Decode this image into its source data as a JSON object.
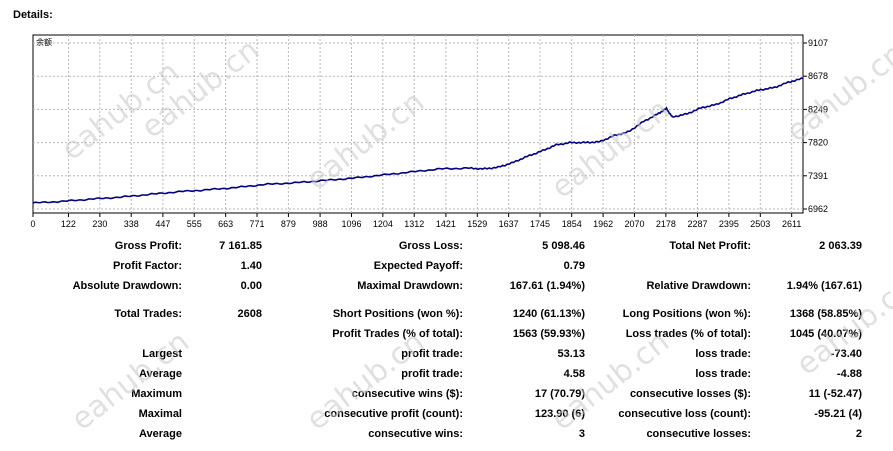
{
  "title": "Details:",
  "chart_data": {
    "type": "line",
    "legend_label": "余额",
    "x_ticks": [
      0,
      122,
      230,
      338,
      447,
      555,
      663,
      771,
      879,
      988,
      1096,
      1204,
      1312,
      1421,
      1529,
      1637,
      1745,
      1854,
      1962,
      2070,
      2178,
      2287,
      2395,
      2503,
      2611
    ],
    "y_ticks": [
      9107,
      8678,
      8249,
      7820,
      7391,
      6962
    ],
    "xlim": [
      0,
      2650
    ],
    "ylim": [
      6962,
      9107
    ],
    "series": [
      {
        "color": "#000080",
        "x": [
          0,
          100,
          200,
          300,
          400,
          500,
          600,
          700,
          800,
          900,
          1000,
          1100,
          1200,
          1300,
          1400,
          1500,
          1550,
          1600,
          1650,
          1700,
          1750,
          1800,
          1850,
          1900,
          1950,
          2000,
          2050,
          2100,
          2150,
          2180,
          2200,
          2250,
          2300,
          2350,
          2400,
          2450,
          2500,
          2550,
          2600,
          2650
        ],
        "y": [
          7040,
          7060,
          7090,
          7115,
          7150,
          7185,
          7210,
          7240,
          7280,
          7300,
          7330,
          7360,
          7400,
          7440,
          7480,
          7490,
          7480,
          7500,
          7560,
          7640,
          7710,
          7790,
          7820,
          7820,
          7830,
          7910,
          7960,
          8090,
          8190,
          8260,
          8150,
          8190,
          8270,
          8310,
          8390,
          8450,
          8500,
          8530,
          8600,
          8650
        ]
      }
    ],
    "grid": true
  },
  "rows": [
    {
      "c1l": "Gross Profit:",
      "c1v": "7 161.85",
      "c2l": "Gross Loss:",
      "c2v": "5 098.46",
      "c3l": "Total Net Profit:",
      "c3v": "2 063.39"
    },
    {
      "c1l": "Profit Factor:",
      "c1v": "1.40",
      "c2l": "Expected Payoff:",
      "c2v": "0.79",
      "c3l": "",
      "c3v": ""
    },
    {
      "c1l": "Absolute Drawdown:",
      "c1v": "0.00",
      "c2l": "Maximal Drawdown:",
      "c2v": "167.61 (1.94%)",
      "c3l": "Relative Drawdown:",
      "c3v": "1.94% (167.61)"
    },
    {
      "c1l": "Total Trades:",
      "c1v": "2608",
      "c2l": "Short Positions (won %):",
      "c2v": "1240 (61.13%)",
      "c3l": "Long Positions (won %):",
      "c3v": "1368 (58.85%)"
    },
    {
      "c1l": "",
      "c1v": "",
      "c2l": "Profit Trades (% of total):",
      "c2v": "1563 (59.93%)",
      "c3l": "Loss trades (% of total):",
      "c3v": "1045 (40.07%)"
    },
    {
      "c1l": "Largest",
      "c1v": "",
      "c2l": "profit trade:",
      "c2v": "53.13",
      "c3l": "loss trade:",
      "c3v": "-73.40"
    },
    {
      "c1l": "Average",
      "c1v": "",
      "c2l": "profit trade:",
      "c2v": "4.58",
      "c3l": "loss trade:",
      "c3v": "-4.88"
    },
    {
      "c1l": "Maximum",
      "c1v": "",
      "c2l": "consecutive wins ($):",
      "c2v": "17 (70.79)",
      "c3l": "consecutive losses ($):",
      "c3v": "11 (-52.47)"
    },
    {
      "c1l": "Maximal",
      "c1v": "",
      "c2l": "consecutive profit (count):",
      "c2v": "123.90 (6)",
      "c3l": "consecutive loss (count):",
      "c3v": "-95.21 (4)"
    },
    {
      "c1l": "Average",
      "c1v": "",
      "c2l": "consecutive wins:",
      "c2v": "3",
      "c3l": "consecutive losses:",
      "c3v": "2"
    }
  ],
  "watermark": "eahub.cn"
}
